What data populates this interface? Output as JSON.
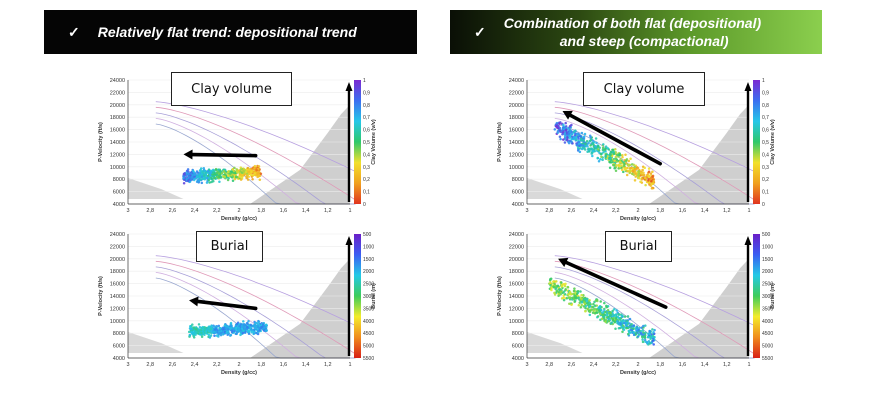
{
  "banners": {
    "left": {
      "check": "✓",
      "text": "Relatively flat trend: depositional trend"
    },
    "right": {
      "check": "✓",
      "line1": "Combination of both flat (depositional)",
      "line2": "and steep  (compactional)"
    }
  },
  "colors": {
    "left_banner_bg": "#050505",
    "right_banner_gradient": [
      "#0a0f06",
      "#5d9a2a",
      "#8bcf4e"
    ],
    "colorbar_clay": [
      "#7b2ad1",
      "#3b6ff0",
      "#25c7e8",
      "#2fc86a",
      "#f2e02c",
      "#f0a020",
      "#e03420"
    ],
    "colorbar_burial": [
      "#6a1fc8",
      "#3a5ef2",
      "#23c9e6",
      "#3dcc5a",
      "#f4ec2c",
      "#f08c1e",
      "#d81f18"
    ]
  },
  "chart_data": [
    {
      "type": "scatter",
      "label_box": "Clay volume",
      "xlabel": "Density (g/cc)",
      "ylabel": "P-Velocity (ft/s)",
      "colorbar_label": "Clay Volume (v/v)",
      "xlim": [
        3,
        1
      ],
      "ylim": [
        4000,
        24000
      ],
      "x_ticks": [
        "3",
        "2,8",
        "2,6",
        "2,4",
        "2,2",
        "2",
        "1,8",
        "1,6",
        "1,4",
        "1,2",
        "1"
      ],
      "y_ticks": [
        "4000",
        "6000",
        "8000",
        "10000",
        "12000",
        "14000",
        "16000",
        "18000",
        "20000",
        "22000",
        "24000"
      ],
      "colorbar_ticks": [
        "1",
        "0,9",
        "0,8",
        "0,7",
        "0,6",
        "0,5",
        "0,4",
        "0,3",
        "0,2",
        "0,1",
        "0"
      ],
      "cluster": {
        "x_range": [
          2.5,
          1.8
        ],
        "y_center": 8800,
        "y_spread": 1400,
        "trend": "flat"
      },
      "arrow": {
        "from": [
          1.85,
          11800
        ],
        "to": [
          2.5,
          12000
        ]
      }
    },
    {
      "type": "scatter",
      "label_box": "Clay volume",
      "xlabel": "Density (g/cc)",
      "ylabel": "P-Velocity (ft/s)",
      "colorbar_label": "Clay Volume (v/v)",
      "xlim": [
        3,
        1
      ],
      "ylim": [
        4000,
        24000
      ],
      "x_ticks": [
        "3",
        "2,8",
        "2,6",
        "2,4",
        "2,2",
        "2",
        "1,8",
        "1,6",
        "1,4",
        "1,2",
        "1"
      ],
      "y_ticks": [
        "4000",
        "6000",
        "8000",
        "10000",
        "12000",
        "14000",
        "16000",
        "18000",
        "20000",
        "22000",
        "24000"
      ],
      "colorbar_ticks": [
        "1",
        "0,9",
        "0,8",
        "0,7",
        "0,6",
        "0,5",
        "0,4",
        "0,3",
        "0,2",
        "0,1",
        "0"
      ],
      "cluster": {
        "x_range": [
          2.75,
          1.85
        ],
        "y_center": 12000,
        "y_spread": 2200,
        "trend": "steep"
      },
      "arrow": {
        "from": [
          1.8,
          10500
        ],
        "to": [
          2.68,
          19000
        ]
      }
    },
    {
      "type": "scatter",
      "label_box": "Burial",
      "xlabel": "Density (g/cc)",
      "ylabel": "P-Velocity (ft/s)",
      "colorbar_label": "Burial (m)",
      "xlim": [
        3,
        1
      ],
      "ylim": [
        4000,
        24000
      ],
      "x_ticks": [
        "3",
        "2,8",
        "2,6",
        "2,4",
        "2,2",
        "2",
        "1,8",
        "1,6",
        "1,4",
        "1,2",
        "1"
      ],
      "y_ticks": [
        "4000",
        "6000",
        "8000",
        "10000",
        "12000",
        "14000",
        "16000",
        "18000",
        "20000",
        "22000",
        "24000"
      ],
      "colorbar_ticks": [
        "500",
        "1000",
        "1500",
        "2000",
        "2500",
        "3000",
        "3500",
        "4000",
        "4500",
        "5000",
        "5500"
      ],
      "cluster": {
        "x_range": [
          2.45,
          1.75
        ],
        "y_center": 8600,
        "y_spread": 1300,
        "trend": "flat"
      },
      "arrow": {
        "from": [
          1.85,
          12000
        ],
        "to": [
          2.45,
          13300
        ]
      }
    },
    {
      "type": "scatter",
      "label_box": "Burial",
      "xlabel": "Density (g/cc)",
      "ylabel": "P-Velocity (ft/s)",
      "colorbar_label": "Burial (m)",
      "xlim": [
        3,
        1
      ],
      "ylim": [
        4000,
        24000
      ],
      "x_ticks": [
        "3",
        "2,8",
        "2,6",
        "2,4",
        "2,2",
        "2",
        "1,8",
        "1,6",
        "1,4",
        "1,2",
        "1"
      ],
      "y_ticks": [
        "4000",
        "6000",
        "8000",
        "10000",
        "12000",
        "14000",
        "16000",
        "18000",
        "20000",
        "22000",
        "24000"
      ],
      "colorbar_ticks": [
        "500",
        "1000",
        "1500",
        "2000",
        "2500",
        "3000",
        "3500",
        "4000",
        "4500",
        "5000",
        "5500"
      ],
      "cluster": {
        "x_range": [
          2.8,
          1.85
        ],
        "y_center": 11500,
        "y_spread": 2000,
        "trend": "steep"
      },
      "arrow": {
        "from": [
          1.75,
          12200
        ],
        "to": [
          2.72,
          20000
        ]
      }
    }
  ]
}
